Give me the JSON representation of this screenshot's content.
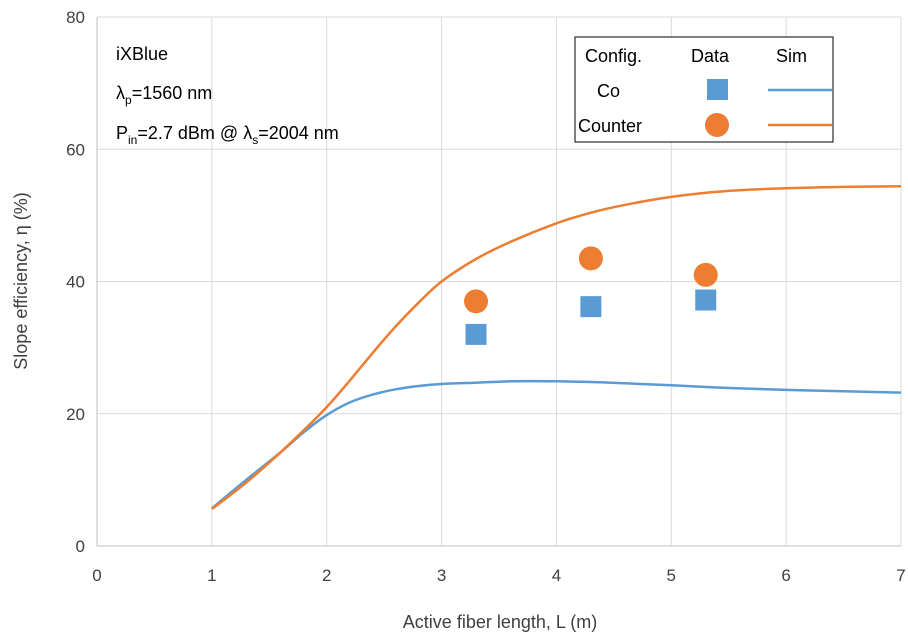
{
  "chart_data": {
    "type": "scatter",
    "title": "",
    "xlabel": "Active fiber length, L (m)",
    "ylabel": "Slope efficiency, η (%)",
    "xlim": [
      0,
      7
    ],
    "ylim": [
      0,
      80
    ],
    "x_ticks": [
      "0",
      "1",
      "2",
      "3",
      "4",
      "5",
      "6",
      "7"
    ],
    "y_ticks": [
      "0",
      "20",
      "40",
      "60",
      "80"
    ],
    "grid": "horizontal and vertical",
    "legend_position": "top-right",
    "legend": {
      "headers": [
        "Config.",
        "Data",
        "Sim"
      ],
      "rows": [
        "Co",
        "Counter"
      ]
    },
    "annotations": {
      "vendor": "iXBlue",
      "pump_symbol": "λ",
      "pump_sub": "p",
      "pump_value": "=1560 nm",
      "pin_symbol": "P",
      "pin_sub": "in",
      "pin_value_a": "=2.7 dBm @ ",
      "pin_symbol2": "λ",
      "pin_sub2": "s",
      "pin_value_b": "=2004 nm"
    },
    "series": [
      {
        "name": "Co",
        "color": "#5B9BD5",
        "marker": "square",
        "data_points": [
          [
            3.3,
            32.0
          ],
          [
            4.3,
            36.2
          ],
          [
            5.3,
            37.2
          ]
        ],
        "sim_curve": [
          [
            1.0,
            5.7
          ],
          [
            1.3,
            10.0
          ],
          [
            1.6,
            14.2
          ],
          [
            1.8,
            17.2
          ],
          [
            2.0,
            19.8
          ],
          [
            2.2,
            21.7
          ],
          [
            2.4,
            22.9
          ],
          [
            2.6,
            23.7
          ],
          [
            2.8,
            24.2
          ],
          [
            3.0,
            24.5
          ],
          [
            3.3,
            24.7
          ],
          [
            3.6,
            24.9
          ],
          [
            4.0,
            24.9
          ],
          [
            4.3,
            24.8
          ],
          [
            4.6,
            24.6
          ],
          [
            5.0,
            24.3
          ],
          [
            5.5,
            23.9
          ],
          [
            6.0,
            23.6
          ],
          [
            6.5,
            23.4
          ],
          [
            7.0,
            23.2
          ]
        ]
      },
      {
        "name": "Counter",
        "color": "#ED7D31",
        "marker": "circle",
        "data_points": [
          [
            3.3,
            37.0
          ],
          [
            4.3,
            43.5
          ],
          [
            5.3,
            41.0
          ]
        ],
        "sim_curve": [
          [
            1.0,
            5.6
          ],
          [
            1.3,
            9.6
          ],
          [
            1.6,
            14.2
          ],
          [
            1.8,
            17.5
          ],
          [
            2.0,
            21.0
          ],
          [
            2.2,
            25.0
          ],
          [
            2.4,
            29.2
          ],
          [
            2.6,
            33.2
          ],
          [
            2.8,
            36.8
          ],
          [
            3.0,
            40.0
          ],
          [
            3.3,
            43.4
          ],
          [
            3.6,
            46.0
          ],
          [
            4.0,
            48.8
          ],
          [
            4.3,
            50.4
          ],
          [
            4.6,
            51.6
          ],
          [
            5.0,
            52.8
          ],
          [
            5.5,
            53.7
          ],
          [
            6.0,
            54.1
          ],
          [
            6.5,
            54.3
          ],
          [
            7.0,
            54.4
          ]
        ]
      }
    ]
  }
}
